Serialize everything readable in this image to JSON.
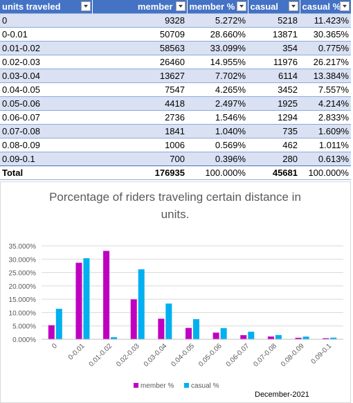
{
  "table": {
    "headers": [
      "units traveled",
      "member",
      "member %",
      "casual",
      "casual %"
    ],
    "rows": [
      [
        "0",
        "9328",
        "5.272%",
        "5218",
        "11.423%"
      ],
      [
        "0-0.01",
        "50709",
        "28.660%",
        "13871",
        "30.365%"
      ],
      [
        "0.01-0.02",
        "58563",
        "33.099%",
        "354",
        "0.775%"
      ],
      [
        "0.02-0.03",
        "26460",
        "14.955%",
        "11976",
        "26.217%"
      ],
      [
        "0.03-0.04",
        "13627",
        "7.702%",
        "6114",
        "13.384%"
      ],
      [
        "0.04-0.05",
        "7547",
        "4.265%",
        "3452",
        "7.557%"
      ],
      [
        "0.05-0.06",
        "4418",
        "2.497%",
        "1925",
        "4.214%"
      ],
      [
        "0.06-0.07",
        "2736",
        "1.546%",
        "1294",
        "2.833%"
      ],
      [
        "0.07-0.08",
        "1841",
        "1.040%",
        "735",
        "1.609%"
      ],
      [
        "0.08-0.09",
        "1006",
        "0.569%",
        "462",
        "1.011%"
      ],
      [
        "0.09-0.1",
        "700",
        "0.396%",
        "280",
        "0.613%"
      ]
    ],
    "total": [
      "Total",
      "176935",
      "100.000%",
      "45681",
      "100.000%"
    ],
    "header_color": "#4472C4",
    "band_color": "#D9E1F2"
  },
  "chart_data": {
    "type": "bar",
    "title": "Porcentage of riders traveling certain distance in units.",
    "categories": [
      "0",
      "0-0.01",
      "0.01-0.02",
      "0.02-0.03",
      "0.03-0.04",
      "0.04-0.05",
      "0.05-0.06",
      "0.06-0.07",
      "0.07-0.08",
      "0.08-0.09",
      "0.09-0.1"
    ],
    "series": [
      {
        "name": "member %",
        "color": "#C000C0",
        "values": [
          5.272,
          28.66,
          33.099,
          14.955,
          7.702,
          4.265,
          2.497,
          1.546,
          1.04,
          0.569,
          0.396
        ]
      },
      {
        "name": "casual %",
        "color": "#00B0F0",
        "values": [
          11.423,
          30.365,
          0.775,
          26.217,
          13.384,
          7.557,
          4.214,
          2.833,
          1.609,
          1.011,
          0.613
        ]
      }
    ],
    "ylim": [
      0,
      35
    ],
    "yticks": [
      "0.000%",
      "5.000%",
      "10.000%",
      "15.000%",
      "20.000%",
      "25.000%",
      "30.000%",
      "35.000%"
    ],
    "ytick_values": [
      0,
      5,
      10,
      15,
      20,
      25,
      30,
      35
    ],
    "grid": true,
    "legend": "bottom",
    "note": "December-2021"
  }
}
